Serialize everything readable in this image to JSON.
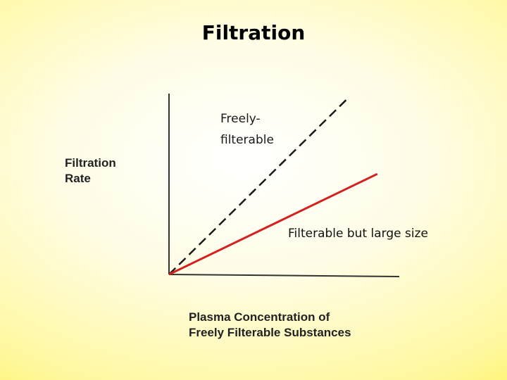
{
  "slide": {
    "title": "Filtration"
  },
  "chart_data": {
    "type": "line",
    "title": "Filtration",
    "ylabel": [
      "Filtration",
      "Rate"
    ],
    "xlabel": [
      "Plasma Concentration of",
      "Freely Filterable Substances"
    ],
    "xlim": [
      0,
      1
    ],
    "ylim": [
      0,
      1
    ],
    "grid": false,
    "legend": "none",
    "series": [
      {
        "name": [
          "Freely-",
          "filterable"
        ],
        "x": [
          0,
          0.78
        ],
        "y": [
          0,
          0.98
        ],
        "color": "#1a1a1a",
        "style": "dashed"
      },
      {
        "name": [
          "Filterable but large size"
        ],
        "x": [
          0,
          0.91
        ],
        "y": [
          0,
          0.56
        ],
        "color": "#d42020",
        "style": "solid"
      }
    ]
  }
}
